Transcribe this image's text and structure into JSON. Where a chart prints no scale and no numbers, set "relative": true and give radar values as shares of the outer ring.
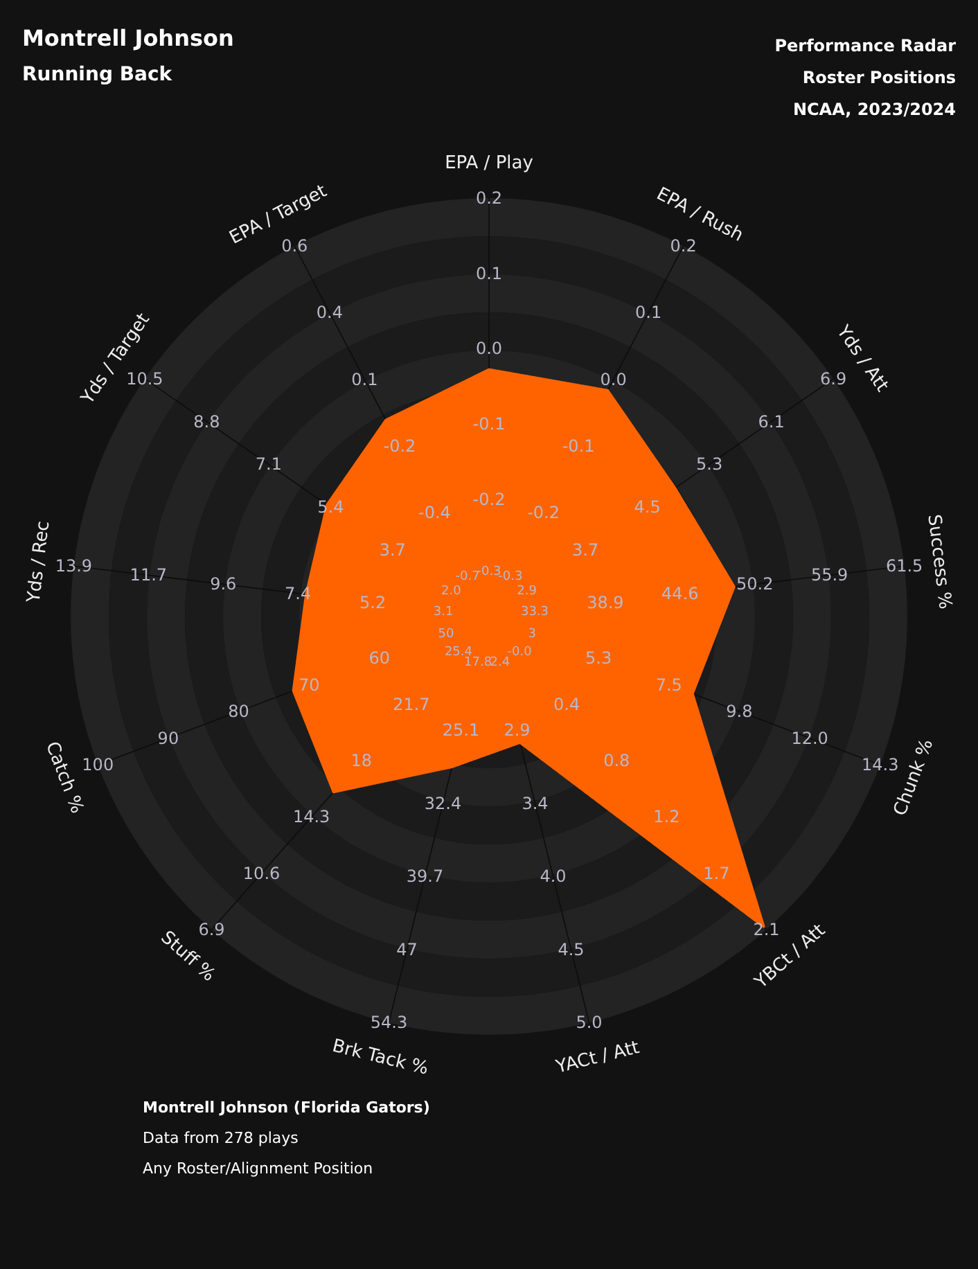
{
  "chart_data": {
    "type": "radar",
    "title": "Montrell Johnson",
    "subtitle": "Running Back",
    "relative": true,
    "grid": true,
    "marker": "none",
    "categories": [
      "EPA / Play",
      "EPA / Rush",
      "Yds / Att",
      "Success %",
      "Chunk %",
      "YBCt / Att",
      "YACt / Att",
      "Brk Tack %",
      "Stuff %",
      "Catch %",
      "Yds / Rec",
      "Yds / Target",
      "EPA / Target"
    ],
    "series": [
      {
        "color": "#ff6300",
        "values": [
          0.59,
          0.61,
          0.54,
          0.59,
          0.52,
          0.99,
          0.31,
          0.37,
          0.56,
          0.5,
          0.44,
          0.47,
          0.53
        ]
      }
    ],
    "annotations": [
      "Performance Radar",
      "Roster Positions",
      "NCAA, 2023/2024",
      "Montrell Johnson (Florida Gators)",
      "Data from 278 plays",
      "Any Roster/Alignment Position",
      {
        "text": "-0.3",
        "x": "EPA / Play"
      },
      {
        "text": "-0.2",
        "x": "EPA / Play"
      },
      {
        "text": "-0.1",
        "x": "EPA / Play"
      },
      {
        "text": "0.0",
        "x": "EPA / Play"
      },
      {
        "text": "0.1",
        "x": "EPA / Play"
      },
      {
        "text": "0.2",
        "x": "EPA / Play"
      },
      {
        "text": "-0.3",
        "x": "EPA / Rush"
      },
      {
        "text": "-0.2",
        "x": "EPA / Rush"
      },
      {
        "text": "-0.1",
        "x": "EPA / Rush"
      },
      {
        "text": "0.0",
        "x": "EPA / Rush"
      },
      {
        "text": "0.1",
        "x": "EPA / Rush"
      },
      {
        "text": "0.2",
        "x": "EPA / Rush"
      },
      {
        "text": "2.9",
        "x": "Yds / Att"
      },
      {
        "text": "3.7",
        "x": "Yds / Att"
      },
      {
        "text": "4.5",
        "x": "Yds / Att"
      },
      {
        "text": "5.3",
        "x": "Yds / Att"
      },
      {
        "text": "6.1",
        "x": "Yds / Att"
      },
      {
        "text": "6.9",
        "x": "Yds / Att"
      },
      {
        "text": "33.3",
        "x": "Success %"
      },
      {
        "text": "38.9",
        "x": "Success %"
      },
      {
        "text": "44.6",
        "x": "Success %"
      },
      {
        "text": "50.2",
        "x": "Success %"
      },
      {
        "text": "55.9",
        "x": "Success %"
      },
      {
        "text": "61.5",
        "x": "Success %"
      },
      {
        "text": "3",
        "x": "Chunk %"
      },
      {
        "text": "5.3",
        "x": "Chunk %"
      },
      {
        "text": "7.5",
        "x": "Chunk %"
      },
      {
        "text": "9.8",
        "x": "Chunk %"
      },
      {
        "text": "12.0",
        "x": "Chunk %"
      },
      {
        "text": "14.3",
        "x": "Chunk %"
      },
      {
        "text": "-0.0",
        "x": "YBCt / Att"
      },
      {
        "text": "0.4",
        "x": "YBCt / Att"
      },
      {
        "text": "0.8",
        "x": "YBCt / Att"
      },
      {
        "text": "1.2",
        "x": "YBCt / Att"
      },
      {
        "text": "1.7",
        "x": "YBCt / Att"
      },
      {
        "text": "2.1",
        "x": "YBCt / Att"
      },
      {
        "text": "2.4",
        "x": "YACt / Att"
      },
      {
        "text": "2.9",
        "x": "YACt / Att"
      },
      {
        "text": "3.4",
        "x": "YACt / Att"
      },
      {
        "text": "4.0",
        "x": "YACt / Att"
      },
      {
        "text": "4.5",
        "x": "YACt / Att"
      },
      {
        "text": "5.0",
        "x": "YACt / Att"
      },
      {
        "text": "17.8",
        "x": "Brk Tack %"
      },
      {
        "text": "25.1",
        "x": "Brk Tack %"
      },
      {
        "text": "32.4",
        "x": "Brk Tack %"
      },
      {
        "text": "39.7",
        "x": "Brk Tack %"
      },
      {
        "text": "47",
        "x": "Brk Tack %"
      },
      {
        "text": "54.3",
        "x": "Brk Tack %"
      },
      {
        "text": "25.4",
        "x": "Stuff %"
      },
      {
        "text": "21.7",
        "x": "Stuff %"
      },
      {
        "text": "18",
        "x": "Stuff %"
      },
      {
        "text": "14.3",
        "x": "Stuff %"
      },
      {
        "text": "10.6",
        "x": "Stuff %"
      },
      {
        "text": "6.9",
        "x": "Stuff %"
      },
      {
        "text": "50",
        "x": "Catch %"
      },
      {
        "text": "60",
        "x": "Catch %"
      },
      {
        "text": "70",
        "x": "Catch %"
      },
      {
        "text": "80",
        "x": "Catch %"
      },
      {
        "text": "90",
        "x": "Catch %"
      },
      {
        "text": "100",
        "x": "Catch %"
      },
      {
        "text": "3.1",
        "x": "Yds / Rec"
      },
      {
        "text": "5.2",
        "x": "Yds / Rec"
      },
      {
        "text": "7.4",
        "x": "Yds / Rec"
      },
      {
        "text": "9.6",
        "x": "Yds / Rec"
      },
      {
        "text": "11.7",
        "x": "Yds / Rec"
      },
      {
        "text": "13.9",
        "x": "Yds / Rec"
      },
      {
        "text": "2.0",
        "x": "Yds / Target"
      },
      {
        "text": "3.7",
        "x": "Yds / Target"
      },
      {
        "text": "5.4",
        "x": "Yds / Target"
      },
      {
        "text": "7.1",
        "x": "Yds / Target"
      },
      {
        "text": "8.8",
        "x": "Yds / Target"
      },
      {
        "text": "10.5",
        "x": "Yds / Target"
      },
      {
        "text": "-0.7",
        "x": "EPA / Target"
      },
      {
        "text": "-0.4",
        "x": "EPA / Target"
      },
      {
        "text": "-0.2",
        "x": "EPA / Target"
      },
      {
        "text": "0.1",
        "x": "EPA / Target"
      },
      {
        "text": "0.4",
        "x": "EPA / Target"
      },
      {
        "text": "0.6",
        "x": "EPA / Target"
      }
    ]
  }
}
